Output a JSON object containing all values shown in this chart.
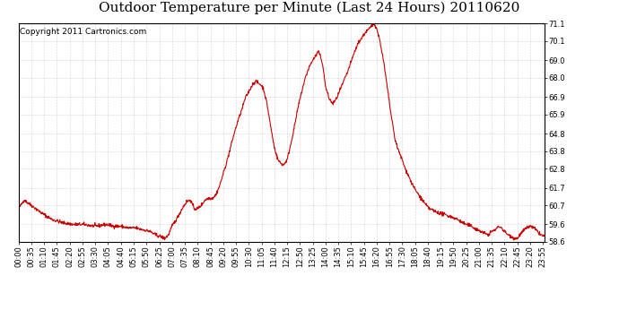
{
  "title": "Outdoor Temperature per Minute (Last 24 Hours) 20110620",
  "copyright": "Copyright 2011 Cartronics.com",
  "line_color": "#cc0000",
  "bg_color": "#ffffff",
  "plot_bg_color": "#ffffff",
  "grid_color": "#aaaaaa",
  "ylim": [
    58.6,
    71.1
  ],
  "yticks": [
    58.6,
    59.6,
    60.7,
    61.7,
    62.8,
    63.8,
    64.8,
    65.9,
    66.9,
    68.0,
    69.0,
    70.1,
    71.1
  ],
  "xtick_labels": [
    "00:00",
    "00:35",
    "01:10",
    "01:45",
    "02:20",
    "02:55",
    "03:30",
    "04:05",
    "04:40",
    "05:15",
    "05:50",
    "06:25",
    "07:00",
    "07:35",
    "08:10",
    "08:45",
    "09:20",
    "09:55",
    "10:30",
    "11:05",
    "11:40",
    "12:15",
    "12:50",
    "13:25",
    "14:00",
    "14:35",
    "15:10",
    "15:45",
    "16:20",
    "16:55",
    "17:30",
    "18:05",
    "18:40",
    "19:15",
    "19:50",
    "20:25",
    "21:00",
    "21:35",
    "22:10",
    "22:45",
    "23:20",
    "23:55"
  ],
  "title_fontsize": 11,
  "copyright_fontsize": 6.5,
  "tick_fontsize": 6,
  "line_width": 0.8,
  "keypoints": [
    [
      0,
      60.5
    ],
    [
      15,
      61.0
    ],
    [
      35,
      60.7
    ],
    [
      60,
      60.3
    ],
    [
      90,
      59.9
    ],
    [
      120,
      59.7
    ],
    [
      150,
      59.6
    ],
    [
      180,
      59.6
    ],
    [
      210,
      59.5
    ],
    [
      240,
      59.6
    ],
    [
      260,
      59.5
    ],
    [
      280,
      59.5
    ],
    [
      300,
      59.4
    ],
    [
      320,
      59.4
    ],
    [
      340,
      59.3
    ],
    [
      360,
      59.2
    ],
    [
      375,
      59.0
    ],
    [
      390,
      58.9
    ],
    [
      400,
      58.8
    ],
    [
      410,
      59.0
    ],
    [
      420,
      59.5
    ],
    [
      435,
      60.0
    ],
    [
      450,
      60.6
    ],
    [
      460,
      60.9
    ],
    [
      470,
      61.0
    ],
    [
      475,
      60.8
    ],
    [
      480,
      60.5
    ],
    [
      490,
      60.5
    ],
    [
      500,
      60.7
    ],
    [
      510,
      61.0
    ],
    [
      520,
      61.1
    ],
    [
      530,
      61.1
    ],
    [
      540,
      61.3
    ],
    [
      550,
      61.8
    ],
    [
      560,
      62.5
    ],
    [
      570,
      63.2
    ],
    [
      580,
      64.0
    ],
    [
      590,
      64.8
    ],
    [
      600,
      65.5
    ],
    [
      610,
      66.1
    ],
    [
      620,
      66.8
    ],
    [
      630,
      67.2
    ],
    [
      640,
      67.6
    ],
    [
      648,
      67.8
    ],
    [
      655,
      67.7
    ],
    [
      663,
      67.6
    ],
    [
      670,
      67.4
    ],
    [
      680,
      66.5
    ],
    [
      690,
      65.2
    ],
    [
      700,
      64.0
    ],
    [
      710,
      63.3
    ],
    [
      718,
      63.1
    ],
    [
      725,
      63.0
    ],
    [
      735,
      63.3
    ],
    [
      745,
      64.2
    ],
    [
      755,
      65.2
    ],
    [
      765,
      66.3
    ],
    [
      775,
      67.2
    ],
    [
      785,
      68.0
    ],
    [
      795,
      68.6
    ],
    [
      805,
      69.0
    ],
    [
      815,
      69.3
    ],
    [
      820,
      69.5
    ],
    [
      825,
      69.3
    ],
    [
      832,
      68.8
    ],
    [
      840,
      67.5
    ],
    [
      850,
      66.8
    ],
    [
      860,
      66.5
    ],
    [
      870,
      66.8
    ],
    [
      880,
      67.3
    ],
    [
      890,
      67.8
    ],
    [
      900,
      68.3
    ],
    [
      910,
      68.9
    ],
    [
      920,
      69.5
    ],
    [
      930,
      70.0
    ],
    [
      940,
      70.3
    ],
    [
      950,
      70.6
    ],
    [
      960,
      70.8
    ],
    [
      968,
      71.0
    ],
    [
      974,
      71.1
    ],
    [
      978,
      70.9
    ],
    [
      983,
      70.6
    ],
    [
      990,
      70.0
    ],
    [
      1000,
      68.8
    ],
    [
      1010,
      67.3
    ],
    [
      1020,
      65.8
    ],
    [
      1030,
      64.5
    ],
    [
      1040,
      63.8
    ],
    [
      1050,
      63.3
    ],
    [
      1058,
      62.8
    ],
    [
      1065,
      62.5
    ],
    [
      1075,
      62.0
    ],
    [
      1085,
      61.6
    ],
    [
      1095,
      61.3
    ],
    [
      1105,
      61.0
    ],
    [
      1115,
      60.7
    ],
    [
      1125,
      60.5
    ],
    [
      1135,
      60.4
    ],
    [
      1145,
      60.3
    ],
    [
      1160,
      60.2
    ],
    [
      1175,
      60.1
    ],
    [
      1190,
      60.0
    ],
    [
      1200,
      59.9
    ],
    [
      1215,
      59.7
    ],
    [
      1225,
      59.6
    ],
    [
      1240,
      59.5
    ],
    [
      1255,
      59.3
    ],
    [
      1265,
      59.2
    ],
    [
      1275,
      59.1
    ],
    [
      1285,
      59.0
    ],
    [
      1295,
      59.2
    ],
    [
      1305,
      59.3
    ],
    [
      1315,
      59.5
    ],
    [
      1322,
      59.4
    ],
    [
      1330,
      59.2
    ],
    [
      1340,
      59.0
    ],
    [
      1350,
      58.9
    ],
    [
      1358,
      58.8
    ],
    [
      1365,
      58.8
    ],
    [
      1372,
      59.0
    ],
    [
      1380,
      59.2
    ],
    [
      1390,
      59.4
    ],
    [
      1400,
      59.5
    ],
    [
      1410,
      59.4
    ],
    [
      1420,
      59.2
    ],
    [
      1430,
      59.0
    ],
    [
      1439,
      58.9
    ]
  ]
}
